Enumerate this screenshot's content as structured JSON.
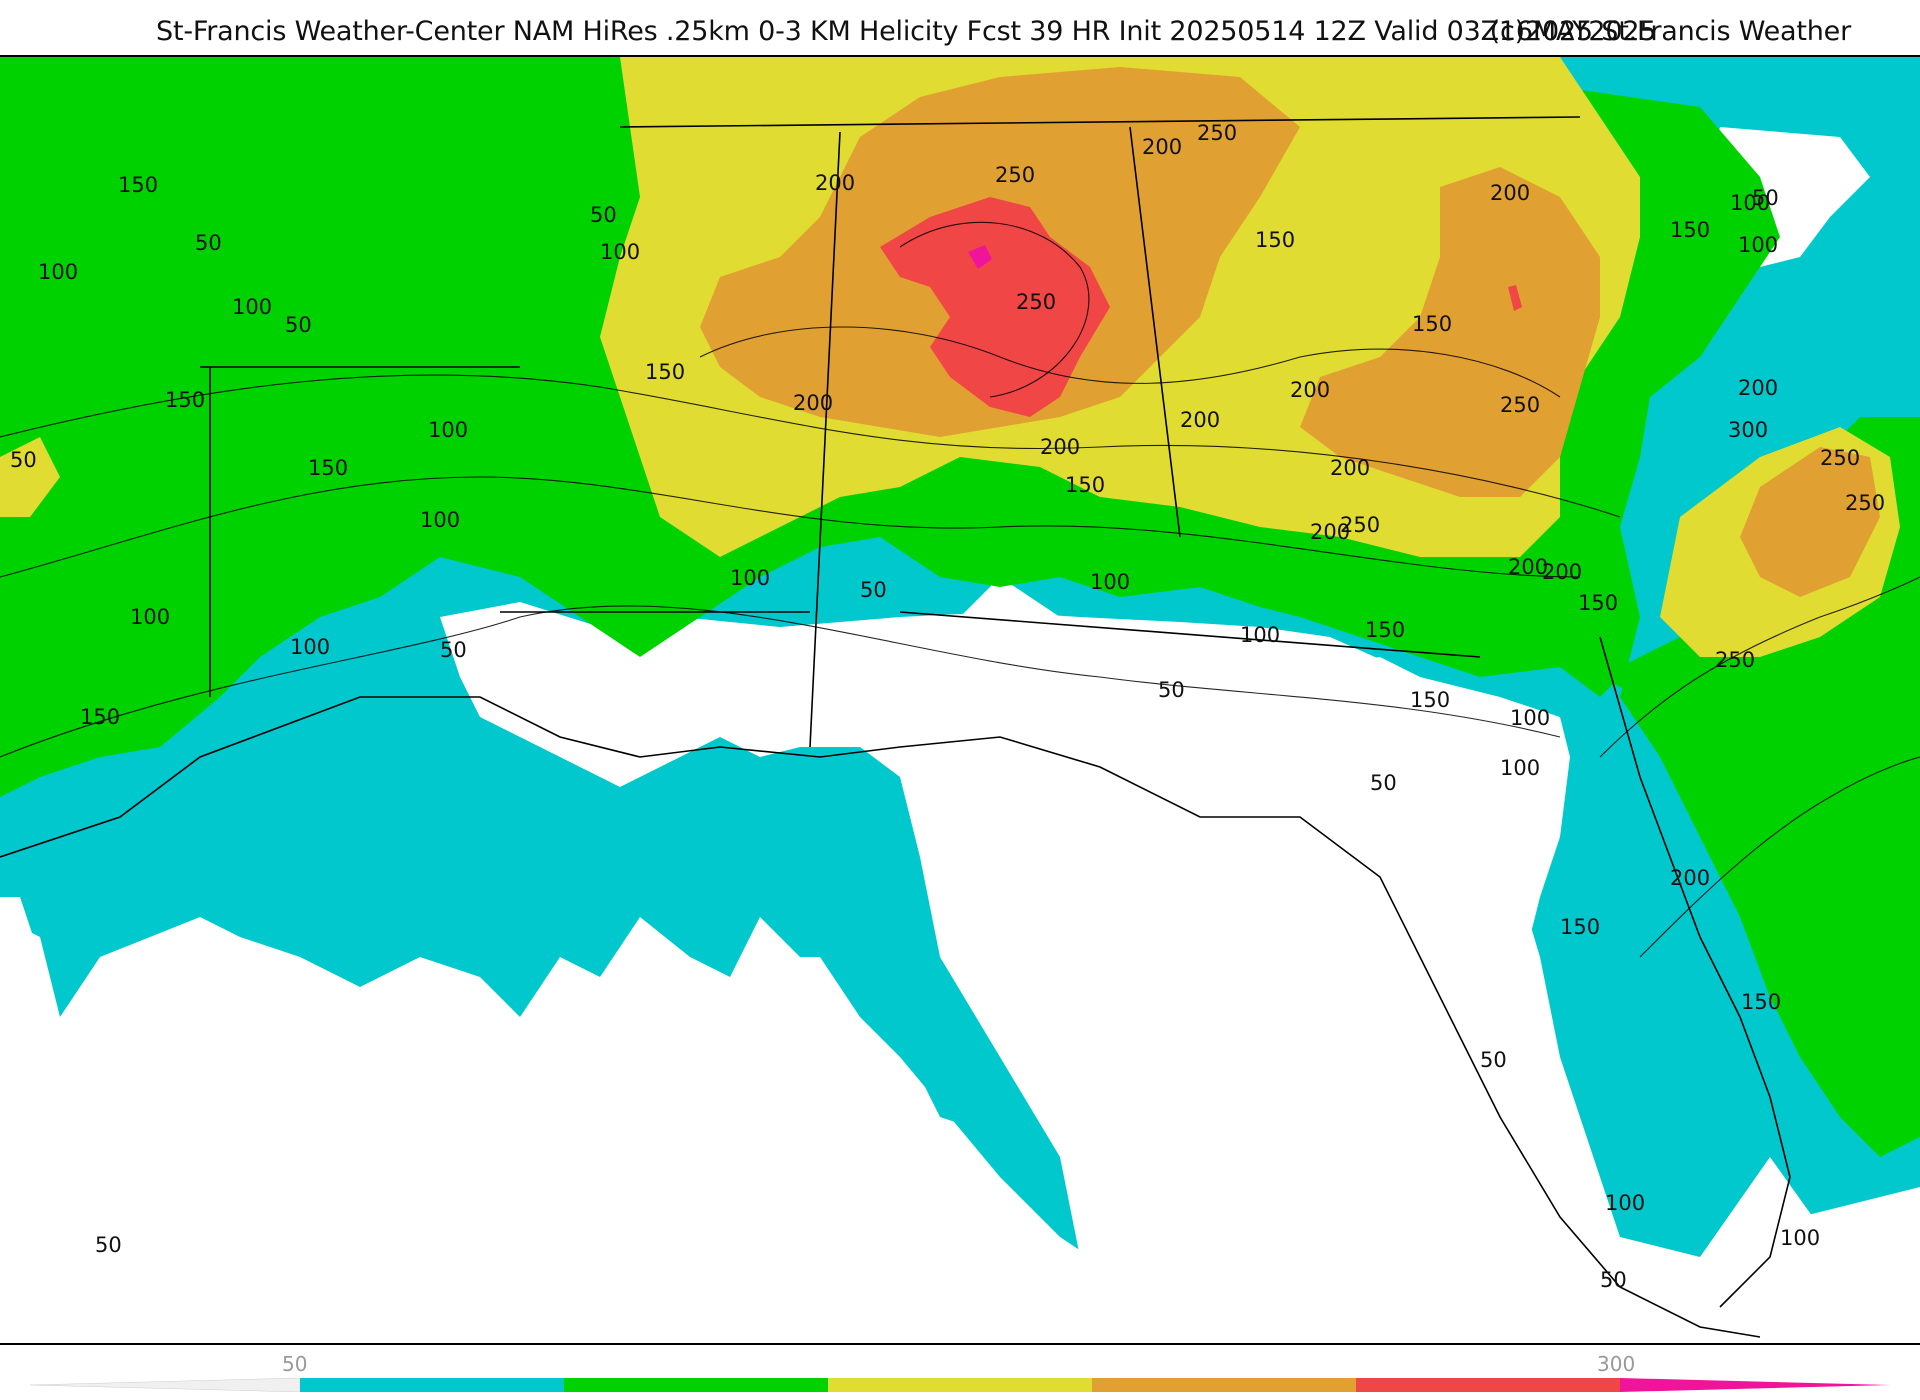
{
  "title": {
    "main": "St-Francis Weather-Center NAM HiRes .25km 0-3 KM Helicity Fcst 39 HR Init 20250514 12Z  Valid 03Z16MAY2025",
    "credit": "(c)2025 St.Francis Weather"
  },
  "map": {
    "region": "Gulf Coast / Southeast United States",
    "field": "0-3 KM Helicity",
    "contour_labels": [
      "150",
      "50",
      "100",
      "100",
      "50",
      "50",
      "100",
      "150",
      "50",
      "100",
      "150",
      "100",
      "100",
      "100",
      "150",
      "100",
      "50",
      "50",
      "150",
      "100",
      "200",
      "200",
      "250",
      "250",
      "200",
      "250",
      "150",
      "150",
      "200",
      "200",
      "150",
      "200",
      "100",
      "50",
      "100",
      "150",
      "200",
      "200",
      "150",
      "100",
      "250",
      "200",
      "50",
      "50",
      "50",
      "200",
      "150",
      "100",
      "200",
      "250",
      "300",
      "250",
      "250",
      "250",
      "200",
      "150",
      "100",
      "100",
      "200",
      "150",
      "150",
      "50",
      "100",
      "50"
    ],
    "shading_colors": {
      "below_50": "#ffffff",
      "50_100": "#00c8cd",
      "100_150": "#00d200",
      "150_200": "#e1dc32",
      "200_250": "#e1a032",
      "250_300": "#f04646",
      "300_plus": "#f0149b"
    }
  },
  "colorbar": {
    "tick_min": "50",
    "tick_max": "300",
    "segments": [
      "#00c8cd",
      "#00d200",
      "#e1dc32",
      "#e1a032",
      "#f04646"
    ],
    "low_extension": "#f0f0f0",
    "high_extension": "#f0149b"
  }
}
